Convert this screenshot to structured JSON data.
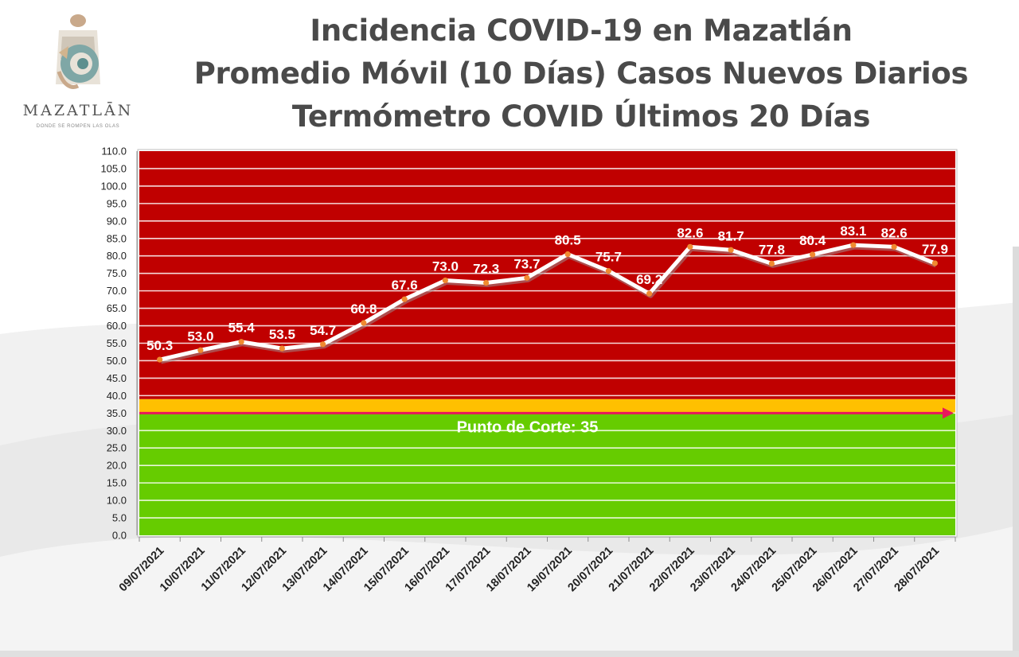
{
  "logo": {
    "wordmark": "MAZATLĀN",
    "tagline": "DONDE SE ROMPEN LAS OLAS"
  },
  "title": {
    "line1": "Incidencia COVID-19 en Mazatlán",
    "line2": "Promedio Móvil (10 Días) Casos Nuevos Diarios",
    "line3": "Termómetro COVID Últimos 20 Días"
  },
  "colors": {
    "red_zone": "#c00000",
    "green_zone": "#66cc00",
    "yellow_band": "#ffc000",
    "cut_line": "#e8175d",
    "series_line": "#ffffff",
    "marker": "#f08a30"
  },
  "chart_data": {
    "type": "line",
    "title": "Incidencia COVID-19 en Mazatlán",
    "xlabel": "",
    "ylabel": "",
    "ylim": [
      0,
      110
    ],
    "ytick_step": 5,
    "grid": true,
    "categories": [
      "09/07/2021",
      "10/07/2021",
      "11/07/2021",
      "12/07/2021",
      "13/07/2021",
      "14/07/2021",
      "15/07/2021",
      "16/07/2021",
      "17/07/2021",
      "18/07/2021",
      "19/07/2021",
      "20/07/2021",
      "21/07/2021",
      "22/07/2021",
      "23/07/2021",
      "24/07/2021",
      "25/07/2021",
      "26/07/2021",
      "27/07/2021",
      "28/07/2021"
    ],
    "series": [
      {
        "values": [
          50.3,
          53.0,
          55.4,
          53.5,
          54.7,
          60.8,
          67.6,
          73.0,
          72.3,
          73.7,
          80.5,
          75.7,
          69.2,
          82.6,
          81.7,
          77.8,
          80.4,
          83.1,
          82.6,
          77.9
        ]
      }
    ],
    "threshold": {
      "value": 35,
      "label": "Punto de Corte: 35"
    },
    "zones": [
      {
        "from": 0,
        "to": 35,
        "color": "green"
      },
      {
        "from": 35,
        "to": 39,
        "color": "yellow"
      },
      {
        "from": 39,
        "to": 110,
        "color": "red"
      }
    ]
  }
}
